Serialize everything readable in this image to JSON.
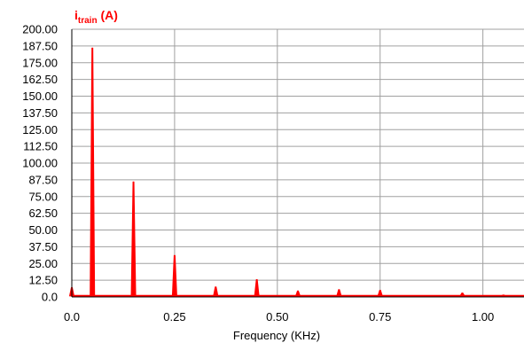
{
  "chart_data": {
    "type": "line",
    "title": "",
    "series_label": {
      "main": "i",
      "subscript": "train",
      "unit": " (A)"
    },
    "xlabel": "Frequency (KHz)",
    "ylabel": "",
    "xlim": [
      0,
      1.1
    ],
    "ylim": [
      0,
      200
    ],
    "x_ticks": [
      0.0,
      0.25,
      0.5,
      0.75,
      1.0
    ],
    "x_tick_labels": [
      "0.0",
      "0.25",
      "0.50",
      "0.75",
      "1.00"
    ],
    "y_ticks": [
      0,
      12.5,
      25,
      37.5,
      50,
      62.5,
      75,
      87.5,
      100,
      112.5,
      125,
      137.5,
      150,
      162.5,
      175,
      187.5,
      200
    ],
    "y_tick_labels": [
      "0.0",
      "12.50",
      "25.00",
      "37.50",
      "50.00",
      "62.50",
      "75.00",
      "87.50",
      "100.00",
      "112.50",
      "125.00",
      "137.50",
      "150.00",
      "162.50",
      "175.00",
      "187.50",
      "200.00"
    ],
    "grid": true,
    "colors": {
      "series": "#ff0000",
      "grid": "#a0a0a0",
      "axes": "#000000"
    },
    "series": [
      {
        "name": "",
        "peaks": [
          {
            "x": 0.0,
            "y": 7
          },
          {
            "x": 0.05,
            "y": 186
          },
          {
            "x": 0.15,
            "y": 86
          },
          {
            "x": 0.25,
            "y": 31
          },
          {
            "x": 0.35,
            "y": 7.5
          },
          {
            "x": 0.45,
            "y": 13
          },
          {
            "x": 0.55,
            "y": 4.5
          },
          {
            "x": 0.65,
            "y": 5.5
          },
          {
            "x": 0.75,
            "y": 5
          },
          {
            "x": 0.85,
            "y": 1
          },
          {
            "x": 0.95,
            "y": 3
          },
          {
            "x": 1.05,
            "y": 1.5
          }
        ]
      }
    ]
  }
}
